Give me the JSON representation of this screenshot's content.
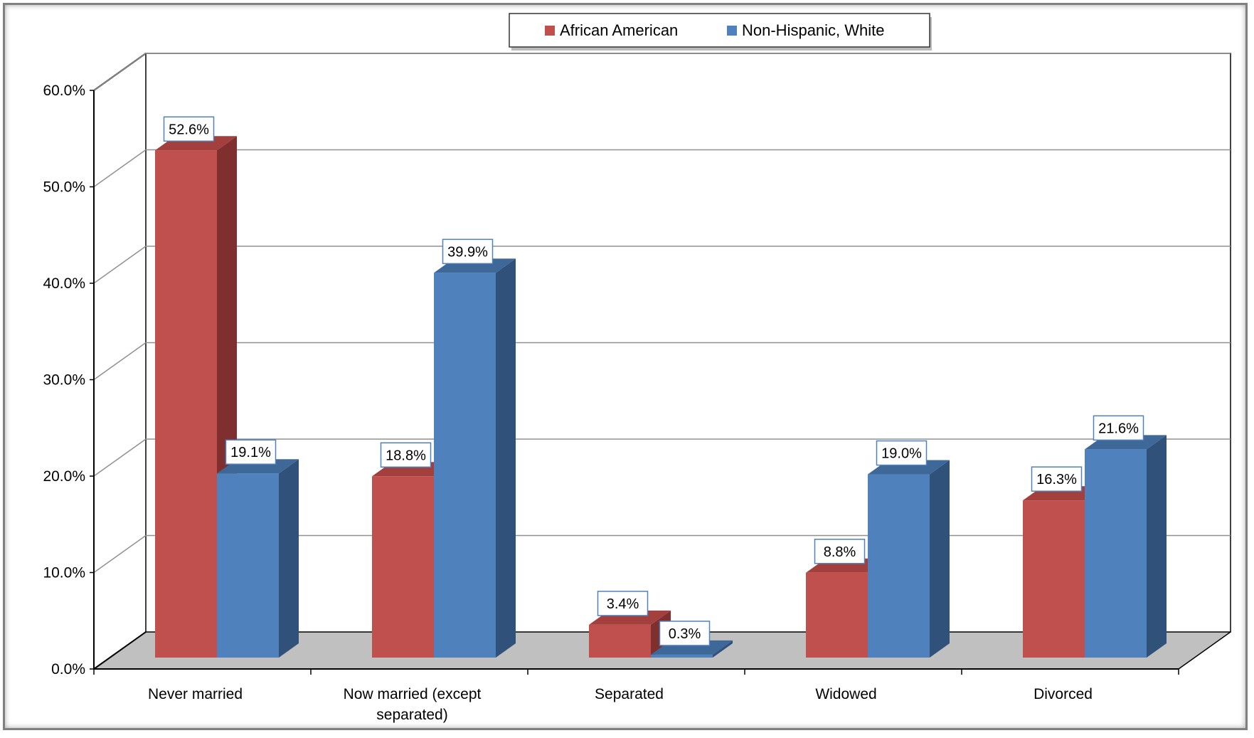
{
  "chart_data": {
    "type": "bar",
    "title": "",
    "xlabel": "",
    "ylabel": "",
    "ylim": [
      0,
      60
    ],
    "y_ticks": [
      "0.0%",
      "10.0%",
      "20.0%",
      "30.0%",
      "40.0%",
      "50.0%",
      "60.0%"
    ],
    "categories": [
      [
        "Never married"
      ],
      [
        "Now married (except",
        "separated)"
      ],
      [
        "Separated"
      ],
      [
        "Widowed"
      ],
      [
        "Divorced"
      ]
    ],
    "series": [
      {
        "name": "African American",
        "color": "#C0504D",
        "side_color": "#7F2F2E",
        "top_color": "#A33F3C",
        "values": [
          52.6,
          18.8,
          3.4,
          8.8,
          16.3
        ],
        "labels": [
          "52.6%",
          "18.8%",
          "3.4%",
          "8.8%",
          "16.3%"
        ]
      },
      {
        "name": "Non-Hispanic, White",
        "color": "#4F81BD",
        "side_color": "#30517A",
        "top_color": "#3E6898",
        "values": [
          19.1,
          39.9,
          0.3,
          19.0,
          21.6
        ],
        "labels": [
          "19.1%",
          "39.9%",
          "0.3%",
          "19.0%",
          "21.6%"
        ]
      }
    ],
    "grid": true,
    "legend_position": "top-center",
    "style": "3d-clustered-column"
  }
}
